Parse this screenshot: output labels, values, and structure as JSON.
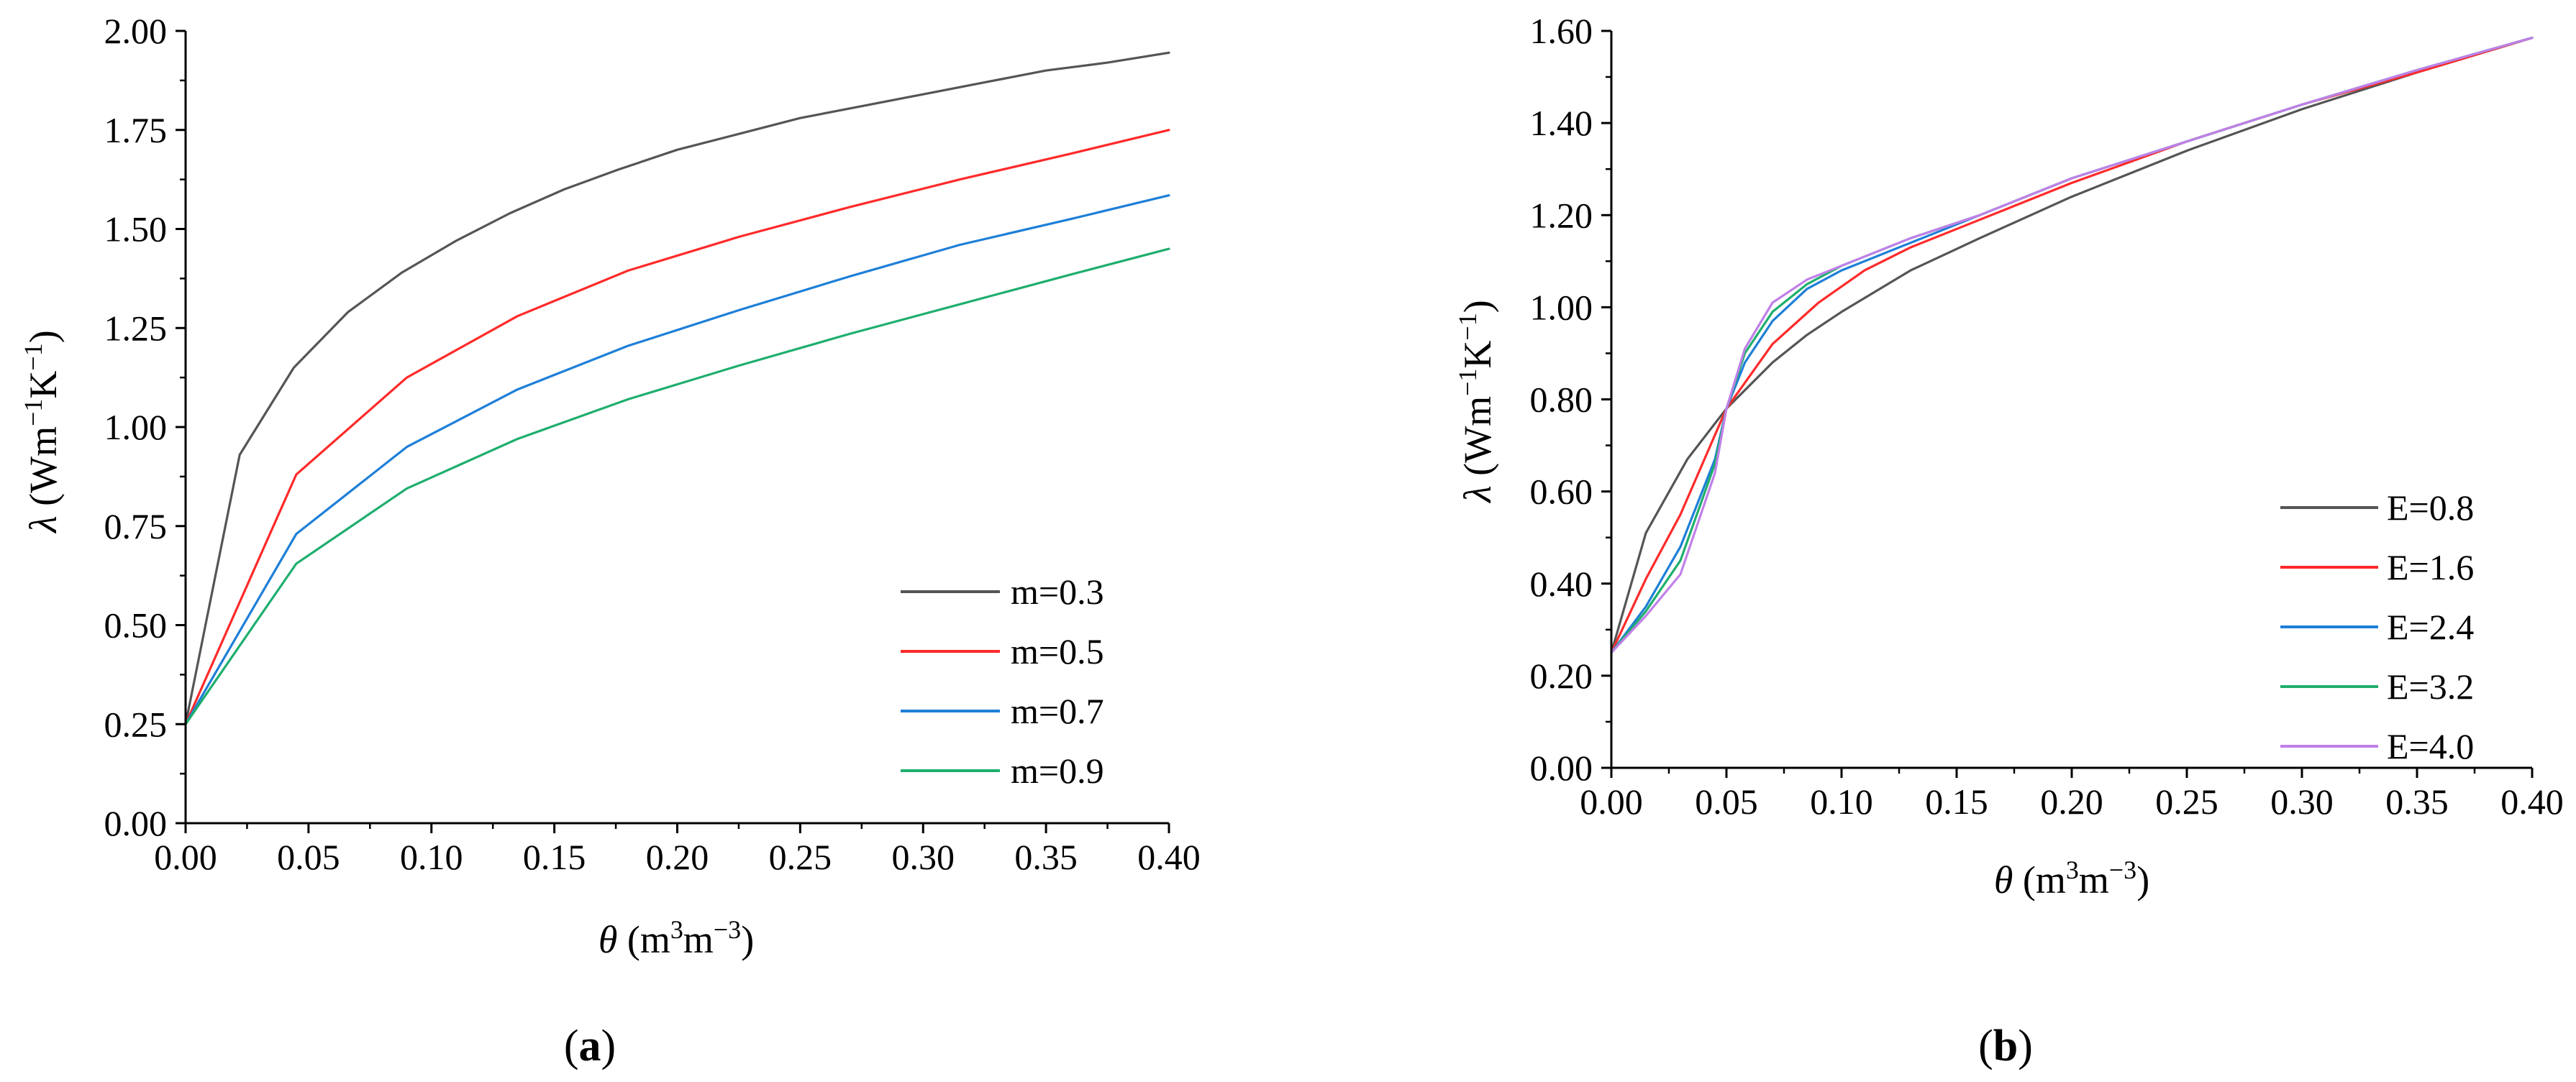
{
  "chart_data": [
    {
      "type": "line",
      "panel": "a",
      "panel_label": {
        "open": "(",
        "letter": "a",
        "close": ")"
      },
      "xlabel": {
        "symbol": "θ",
        "unit_open": " (m",
        "sup1": "3",
        "unit_mid": "m",
        "sup2": "−3",
        "unit_close": ")"
      },
      "ylabel": {
        "symbol": "λ",
        "unit_open": " (Wm",
        "sup1": "−1",
        "unit_mid": "K",
        "sup2": "−1",
        "unit_close": ")"
      },
      "xlim": [
        0,
        0.4
      ],
      "ylim": [
        0,
        2.0
      ],
      "x_ticks": [
        "0.00",
        "0.05",
        "0.10",
        "0.15",
        "0.20",
        "0.25",
        "0.30",
        "0.35",
        "0.40"
      ],
      "y_ticks": [
        "0.00",
        "0.25",
        "0.50",
        "0.75",
        "1.00",
        "1.25",
        "1.50",
        "1.75",
        "2.00"
      ],
      "legend_position": "bottom-right",
      "series": [
        {
          "name": "m=0.3",
          "color": "#555555",
          "x": [
            0,
            0.022,
            0.044,
            0.066,
            0.088,
            0.11,
            0.132,
            0.154,
            0.176,
            0.2,
            0.225,
            0.25,
            0.275,
            0.3,
            0.325,
            0.35,
            0.375,
            0.4
          ],
          "y": [
            0.25,
            0.93,
            1.15,
            1.29,
            1.39,
            1.47,
            1.54,
            1.6,
            1.65,
            1.7,
            1.74,
            1.78,
            1.81,
            1.84,
            1.87,
            1.9,
            1.92,
            1.945
          ]
        },
        {
          "name": "m=0.5",
          "color": "#ff2a2a",
          "x": [
            0,
            0.045,
            0.09,
            0.135,
            0.18,
            0.225,
            0.27,
            0.315,
            0.36,
            0.4
          ],
          "y": [
            0.25,
            0.88,
            1.125,
            1.28,
            1.395,
            1.48,
            1.555,
            1.625,
            1.69,
            1.75
          ]
        },
        {
          "name": "m=0.7",
          "color": "#1e7fd8",
          "x": [
            0,
            0.045,
            0.09,
            0.135,
            0.18,
            0.225,
            0.27,
            0.315,
            0.36,
            0.4
          ],
          "y": [
            0.25,
            0.73,
            0.95,
            1.095,
            1.205,
            1.295,
            1.38,
            1.46,
            1.525,
            1.585
          ]
        },
        {
          "name": "m=0.9",
          "color": "#1fae6e",
          "x": [
            0,
            0.045,
            0.09,
            0.135,
            0.18,
            0.225,
            0.27,
            0.315,
            0.36,
            0.4
          ],
          "y": [
            0.25,
            0.655,
            0.845,
            0.97,
            1.07,
            1.155,
            1.235,
            1.31,
            1.385,
            1.45
          ]
        }
      ]
    },
    {
      "type": "line",
      "panel": "b",
      "panel_label": {
        "open": "(",
        "letter": "b",
        "close": ")"
      },
      "xlabel": {
        "symbol": "θ",
        "unit_open": " (m",
        "sup1": "3",
        "unit_mid": "m",
        "sup2": "−3",
        "unit_close": ")"
      },
      "ylabel": {
        "symbol": "λ",
        "unit_open": " (Wm",
        "sup1": "−1",
        "unit_mid": "K",
        "sup2": "−1",
        "unit_close": ")"
      },
      "xlim": [
        0,
        0.4
      ],
      "ylim": [
        0,
        1.6
      ],
      "x_ticks": [
        "0.00",
        "0.05",
        "0.10",
        "0.15",
        "0.20",
        "0.25",
        "0.30",
        "0.35",
        "0.40"
      ],
      "y_ticks": [
        "0.00",
        "0.20",
        "0.40",
        "0.60",
        "0.80",
        "1.00",
        "1.20",
        "1.40",
        "1.60"
      ],
      "legend_position": "bottom-right",
      "series": [
        {
          "name": "E=0.8",
          "color": "#555555",
          "x": [
            0,
            0.015,
            0.033,
            0.05,
            0.07,
            0.085,
            0.1,
            0.13,
            0.16,
            0.2,
            0.25,
            0.3,
            0.35,
            0.4
          ],
          "y": [
            0.25,
            0.51,
            0.67,
            0.78,
            0.88,
            0.94,
            0.99,
            1.08,
            1.15,
            1.24,
            1.34,
            1.43,
            1.51,
            1.585
          ]
        },
        {
          "name": "E=1.6",
          "color": "#ff2a2a",
          "x": [
            0,
            0.015,
            0.03,
            0.05,
            0.07,
            0.09,
            0.11,
            0.13,
            0.16,
            0.2,
            0.25,
            0.3,
            0.35,
            0.4
          ],
          "y": [
            0.25,
            0.41,
            0.55,
            0.78,
            0.92,
            1.01,
            1.08,
            1.13,
            1.19,
            1.27,
            1.36,
            1.44,
            1.51,
            1.585
          ]
        },
        {
          "name": "E=2.4",
          "color": "#1e7fd8",
          "x": [
            0,
            0.015,
            0.03,
            0.045,
            0.05,
            0.058,
            0.07,
            0.085,
            0.1,
            0.13,
            0.16,
            0.2,
            0.25,
            0.3,
            0.35,
            0.4
          ],
          "y": [
            0.25,
            0.35,
            0.48,
            0.67,
            0.78,
            0.88,
            0.97,
            1.04,
            1.08,
            1.14,
            1.2,
            1.28,
            1.36,
            1.44,
            1.515,
            1.585
          ]
        },
        {
          "name": "E=3.2",
          "color": "#1fae6e",
          "x": [
            0,
            0.015,
            0.03,
            0.045,
            0.05,
            0.058,
            0.07,
            0.085,
            0.1,
            0.13,
            0.16,
            0.2,
            0.25,
            0.3,
            0.35,
            0.4
          ],
          "y": [
            0.25,
            0.34,
            0.45,
            0.66,
            0.78,
            0.9,
            0.99,
            1.05,
            1.09,
            1.15,
            1.2,
            1.28,
            1.36,
            1.44,
            1.515,
            1.585
          ]
        },
        {
          "name": "E=4.0",
          "color": "#c080e8",
          "x": [
            0,
            0.015,
            0.03,
            0.045,
            0.05,
            0.058,
            0.07,
            0.085,
            0.1,
            0.13,
            0.16,
            0.2,
            0.25,
            0.3,
            0.35,
            0.4
          ],
          "y": [
            0.25,
            0.33,
            0.42,
            0.64,
            0.78,
            0.91,
            1.01,
            1.06,
            1.09,
            1.15,
            1.2,
            1.28,
            1.36,
            1.44,
            1.515,
            1.585
          ]
        }
      ]
    }
  ]
}
